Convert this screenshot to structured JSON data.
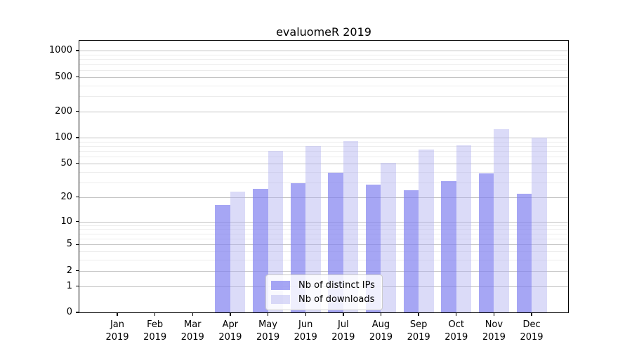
{
  "chart_data": {
    "type": "bar",
    "title": "evaluomeR 2019",
    "categories": [
      "Jan",
      "Feb",
      "Mar",
      "Apr",
      "May",
      "Jun",
      "Jul",
      "Aug",
      "Sep",
      "Oct",
      "Nov",
      "Dec"
    ],
    "x_year": "2019",
    "series": [
      {
        "name": "Nb of distinct IPs",
        "color": "rgba(128,128,240,0.70)",
        "solid_color_hex": "#a6a6f4",
        "values": [
          0,
          0,
          0,
          16,
          25,
          29,
          39,
          28,
          24,
          31,
          38,
          22
        ]
      },
      {
        "name": "Nb of downloads",
        "color": "rgba(176,176,240,0.45)",
        "solid_color_hex": "#dcdcf8",
        "values": [
          0,
          0,
          0,
          23,
          70,
          80,
          91,
          51,
          73,
          81,
          126,
          99
        ]
      }
    ],
    "xlabel": "",
    "ylabel": "",
    "yscale": "log1p",
    "ylim": [
      0,
      1300
    ],
    "y_ticks": [
      0,
      1,
      2,
      5,
      10,
      20,
      50,
      100,
      200,
      500,
      1000
    ],
    "grid": "horizontal",
    "legend_position": "inside-bottom-center"
  },
  "colors": {
    "major_grid": "#c3c3c3",
    "minor_grid": "#ececec",
    "spine": "#000000",
    "bar_ips": "rgba(128,128,240,0.70)",
    "bar_downloads": "rgba(176,176,240,0.45)",
    "legend_border": "#cccccc",
    "text": "#000000"
  }
}
